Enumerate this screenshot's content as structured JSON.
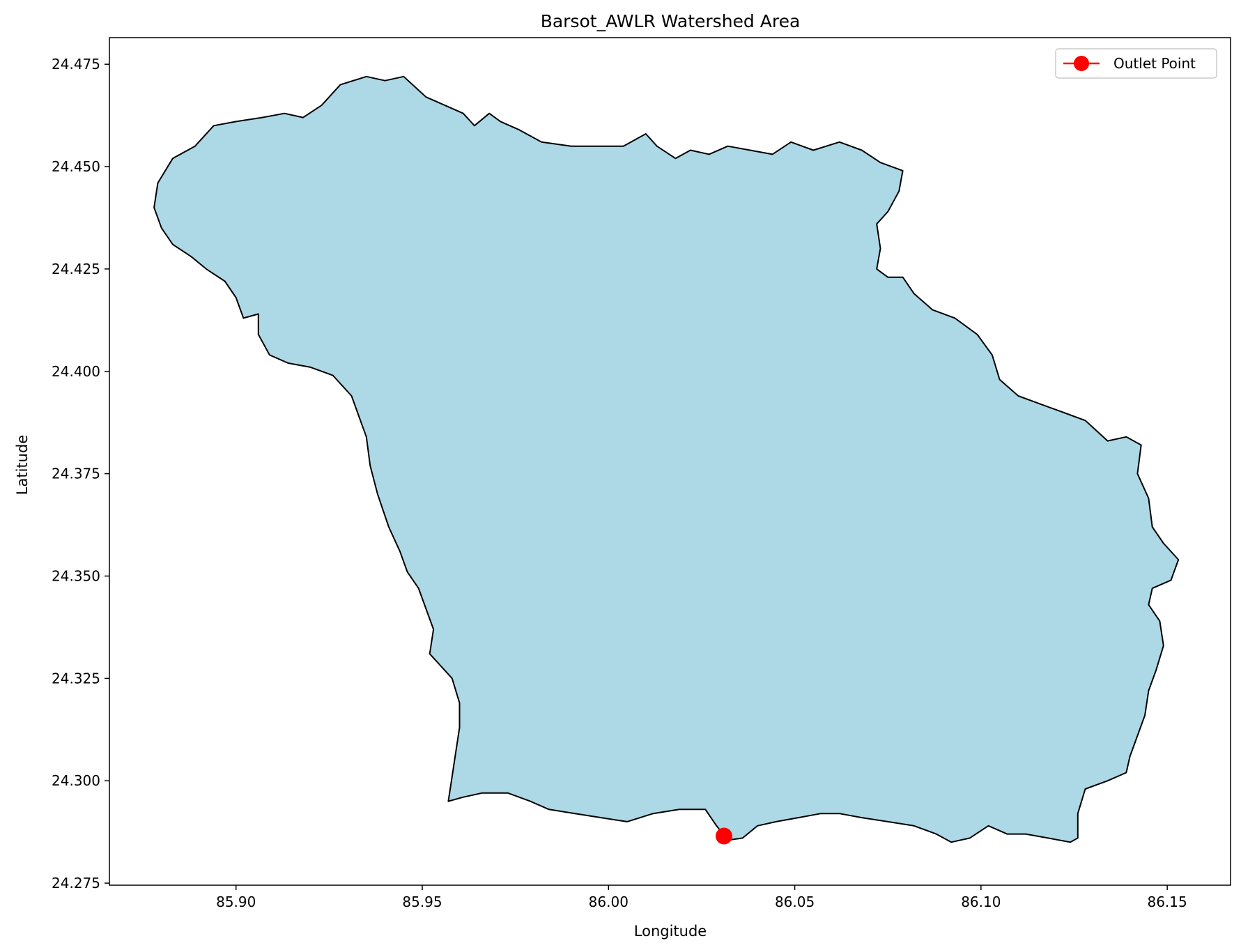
{
  "chart_data": {
    "type": "map",
    "title": "Barsot_AWLR Watershed Area",
    "xlabel": "Longitude",
    "ylabel": "Latitude",
    "xlim": [
      85.866,
      86.167
    ],
    "ylim": [
      24.2745,
      24.4815
    ],
    "xticks": [
      85.9,
      85.95,
      86.0,
      86.05,
      86.1,
      86.15
    ],
    "xtick_labels": [
      "85.90",
      "85.95",
      "86.00",
      "86.05",
      "86.10",
      "86.15"
    ],
    "yticks": [
      24.275,
      24.3,
      24.325,
      24.35,
      24.375,
      24.4,
      24.425,
      24.45,
      24.475
    ],
    "ytick_labels": [
      "24.275",
      "24.300",
      "24.325",
      "24.350",
      "24.375",
      "24.400",
      "24.425",
      "24.450",
      "24.475"
    ],
    "grid": false,
    "legend": {
      "placement": "top-right",
      "entries": [
        {
          "label": "Outlet Point",
          "color": "#ff0000",
          "marker": "circle"
        }
      ]
    },
    "watershed": {
      "fill_color": "#add8e6",
      "edge_color": "#000000",
      "boundary": [
        [
          85.879,
          24.446
        ],
        [
          85.883,
          24.452
        ],
        [
          85.889,
          24.455
        ],
        [
          85.894,
          24.46
        ],
        [
          85.9,
          24.461
        ],
        [
          85.907,
          24.462
        ],
        [
          85.913,
          24.463
        ],
        [
          85.918,
          24.462
        ],
        [
          85.923,
          24.465
        ],
        [
          85.928,
          24.47
        ],
        [
          85.935,
          24.472
        ],
        [
          85.94,
          24.471
        ],
        [
          85.945,
          24.472
        ],
        [
          85.951,
          24.467
        ],
        [
          85.956,
          24.465
        ],
        [
          85.961,
          24.463
        ],
        [
          85.964,
          24.46
        ],
        [
          85.968,
          24.463
        ],
        [
          85.971,
          24.461
        ],
        [
          85.976,
          24.459
        ],
        [
          85.982,
          24.456
        ],
        [
          85.99,
          24.455
        ],
        [
          85.997,
          24.455
        ],
        [
          86.004,
          24.455
        ],
        [
          86.01,
          24.458
        ],
        [
          86.013,
          24.455
        ],
        [
          86.018,
          24.452
        ],
        [
          86.022,
          24.454
        ],
        [
          86.027,
          24.453
        ],
        [
          86.032,
          24.455
        ],
        [
          86.038,
          24.454
        ],
        [
          86.044,
          24.453
        ],
        [
          86.049,
          24.456
        ],
        [
          86.055,
          24.454
        ],
        [
          86.062,
          24.456
        ],
        [
          86.068,
          24.454
        ],
        [
          86.073,
          24.451
        ],
        [
          86.079,
          24.449
        ],
        [
          86.078,
          24.444
        ],
        [
          86.075,
          24.439
        ],
        [
          86.072,
          24.436
        ],
        [
          86.073,
          24.43
        ],
        [
          86.072,
          24.425
        ],
        [
          86.075,
          24.423
        ],
        [
          86.079,
          24.423
        ],
        [
          86.082,
          24.419
        ],
        [
          86.087,
          24.415
        ],
        [
          86.093,
          24.413
        ],
        [
          86.099,
          24.409
        ],
        [
          86.103,
          24.404
        ],
        [
          86.105,
          24.398
        ],
        [
          86.11,
          24.394
        ],
        [
          86.116,
          24.392
        ],
        [
          86.122,
          24.39
        ],
        [
          86.128,
          24.388
        ],
        [
          86.134,
          24.383
        ],
        [
          86.139,
          24.384
        ],
        [
          86.143,
          24.382
        ],
        [
          86.142,
          24.375
        ],
        [
          86.145,
          24.369
        ],
        [
          86.146,
          24.362
        ],
        [
          86.149,
          24.358
        ],
        [
          86.153,
          24.354
        ],
        [
          86.151,
          24.349
        ],
        [
          86.146,
          24.347
        ],
        [
          86.145,
          24.343
        ],
        [
          86.148,
          24.339
        ],
        [
          86.149,
          24.333
        ],
        [
          86.147,
          24.327
        ],
        [
          86.145,
          24.322
        ],
        [
          86.144,
          24.316
        ],
        [
          86.142,
          24.311
        ],
        [
          86.14,
          24.306
        ],
        [
          86.139,
          24.302
        ],
        [
          86.134,
          24.3
        ],
        [
          86.128,
          24.298
        ],
        [
          86.126,
          24.292
        ],
        [
          86.126,
          24.286
        ],
        [
          86.124,
          24.285
        ],
        [
          86.118,
          24.286
        ],
        [
          86.112,
          24.287
        ],
        [
          86.107,
          24.287
        ],
        [
          86.102,
          24.289
        ],
        [
          86.097,
          24.286
        ],
        [
          86.092,
          24.285
        ],
        [
          86.088,
          24.287
        ],
        [
          86.082,
          24.289
        ],
        [
          86.075,
          24.29
        ],
        [
          86.068,
          24.291
        ],
        [
          86.062,
          24.292
        ],
        [
          86.057,
          24.292
        ],
        [
          86.051,
          24.291
        ],
        [
          86.045,
          24.29
        ],
        [
          86.04,
          24.289
        ],
        [
          86.036,
          24.286
        ],
        [
          86.032,
          24.2855
        ],
        [
          86.029,
          24.289
        ],
        [
          86.026,
          24.293
        ],
        [
          86.019,
          24.293
        ],
        [
          86.012,
          24.292
        ],
        [
          86.005,
          24.29
        ],
        [
          85.998,
          24.291
        ],
        [
          85.991,
          24.292
        ],
        [
          85.984,
          24.293
        ],
        [
          85.979,
          24.295
        ],
        [
          85.973,
          24.297
        ],
        [
          85.966,
          24.297
        ],
        [
          85.961,
          24.296
        ],
        [
          85.957,
          24.295
        ],
        [
          85.958,
          24.301
        ],
        [
          85.959,
          24.307
        ],
        [
          85.96,
          24.313
        ],
        [
          85.96,
          24.319
        ],
        [
          85.958,
          24.325
        ],
        [
          85.955,
          24.328
        ],
        [
          85.952,
          24.331
        ],
        [
          85.953,
          24.337
        ],
        [
          85.951,
          24.342
        ],
        [
          85.949,
          24.347
        ],
        [
          85.946,
          24.351
        ],
        [
          85.944,
          24.356
        ],
        [
          85.941,
          24.362
        ],
        [
          85.938,
          24.37
        ],
        [
          85.936,
          24.377
        ],
        [
          85.935,
          24.384
        ],
        [
          85.933,
          24.389
        ],
        [
          85.931,
          24.394
        ],
        [
          85.926,
          24.399
        ],
        [
          85.92,
          24.401
        ],
        [
          85.914,
          24.402
        ],
        [
          85.909,
          24.404
        ],
        [
          85.906,
          24.409
        ],
        [
          85.906,
          24.414
        ],
        [
          85.902,
          24.413
        ],
        [
          85.9,
          24.418
        ],
        [
          85.897,
          24.422
        ],
        [
          85.892,
          24.425
        ],
        [
          85.888,
          24.428
        ],
        [
          85.883,
          24.431
        ],
        [
          85.88,
          24.435
        ],
        [
          85.878,
          24.44
        ]
      ]
    },
    "outlet_point": {
      "lon": 86.031,
      "lat": 24.2865,
      "color": "#ff0000"
    }
  }
}
